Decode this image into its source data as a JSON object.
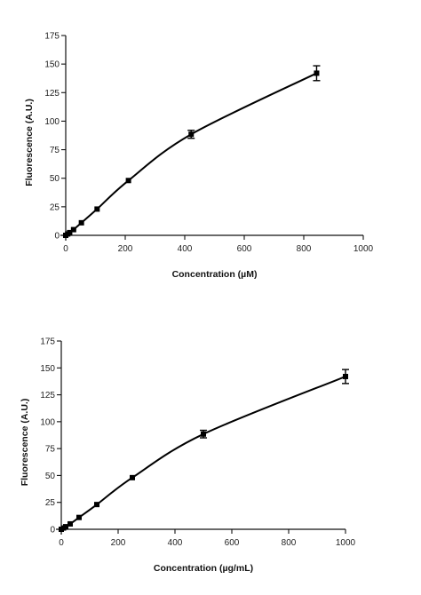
{
  "chart_data": [
    {
      "type": "scatter",
      "title": "",
      "xlabel": "Concentration (µM)",
      "ylabel": "Fluorescence (A.U.)",
      "xlim": [
        0,
        1000
      ],
      "ylim": [
        0,
        175
      ],
      "xticks": [
        0,
        200,
        400,
        600,
        800,
        1000
      ],
      "yticks": [
        0,
        25,
        50,
        75,
        100,
        125,
        150,
        175
      ],
      "grid": false,
      "series": [
        {
          "points": [
            {
              "x": 0,
              "y": 0,
              "err": 0.5
            },
            {
              "x": 6.6,
              "y": 1.2,
              "err": 0.5
            },
            {
              "x": 13.2,
              "y": 2.4,
              "err": 0.5
            },
            {
              "x": 26.4,
              "y": 5,
              "err": 0.6
            },
            {
              "x": 52.7,
              "y": 11,
              "err": 0.8
            },
            {
              "x": 105.4,
              "y": 23,
              "err": 1.2
            },
            {
              "x": 210.8,
              "y": 48,
              "err": 1.5
            },
            {
              "x": 421.6,
              "y": 88.5,
              "err": 3.5
            },
            {
              "x": 843.2,
              "y": 142,
              "err": 6.5
            }
          ],
          "fit": "smooth saturating curve"
        }
      ]
    },
    {
      "type": "scatter",
      "title": "",
      "xlabel": "Concentration (µg/mL)",
      "ylabel": "Fluorescence (A.U.)",
      "xlim": [
        0,
        1000
      ],
      "ylim": [
        0,
        175
      ],
      "xticks": [
        0,
        200,
        400,
        600,
        800,
        1000
      ],
      "yticks": [
        0,
        25,
        50,
        75,
        100,
        125,
        150,
        175
      ],
      "grid": false,
      "series": [
        {
          "points": [
            {
              "x": 0,
              "y": 0,
              "err": 0.5
            },
            {
              "x": 7.8,
              "y": 1.2,
              "err": 0.5
            },
            {
              "x": 15.6,
              "y": 2.4,
              "err": 0.5
            },
            {
              "x": 31.3,
              "y": 5,
              "err": 0.6
            },
            {
              "x": 62.5,
              "y": 11,
              "err": 0.8
            },
            {
              "x": 125,
              "y": 23,
              "err": 1.2
            },
            {
              "x": 250,
              "y": 48,
              "err": 1.5
            },
            {
              "x": 500,
              "y": 88.5,
              "err": 3.5
            },
            {
              "x": 1000,
              "y": 142,
              "err": 6.5
            }
          ],
          "fit": "smooth saturating curve"
        }
      ]
    }
  ]
}
